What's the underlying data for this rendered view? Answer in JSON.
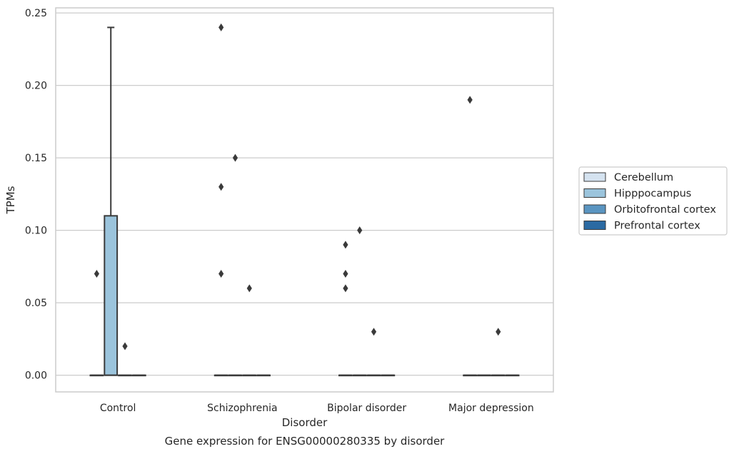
{
  "chart_data": {
    "type": "box",
    "title": "Gene expression for ENSG00000280335 by disorder",
    "xlabel": "Disorder",
    "ylabel": "TPMs",
    "ylim": [
      -0.0115,
      0.2535
    ],
    "yticks": [
      0.0,
      0.05,
      0.1,
      0.15,
      0.2,
      0.25
    ],
    "ytick_labels": [
      "0.00",
      "0.05",
      "0.10",
      "0.15",
      "0.20",
      "0.25"
    ],
    "categories": [
      "Control",
      "Schizophrenia",
      "Bipolar disorder",
      "Major depression"
    ],
    "grid": true,
    "legend_position": "right",
    "series": [
      {
        "name": "Cerebellum",
        "color": "#d5e3f0",
        "boxes": [
          {
            "category": "Control",
            "q1": 0,
            "median": 0,
            "q3": 0,
            "whisker_low": 0,
            "whisker_high": 0,
            "outliers": [
              0.07
            ]
          },
          {
            "category": "Schizophrenia",
            "q1": 0,
            "median": 0,
            "q3": 0,
            "whisker_low": 0,
            "whisker_high": 0,
            "outliers": [
              0.07,
              0.13,
              0.24
            ]
          },
          {
            "category": "Bipolar disorder",
            "q1": 0,
            "median": 0,
            "q3": 0,
            "whisker_low": 0,
            "whisker_high": 0,
            "outliers": [
              0.06,
              0.07,
              0.09
            ]
          },
          {
            "category": "Major depression",
            "q1": 0,
            "median": 0,
            "q3": 0,
            "whisker_low": 0,
            "whisker_high": 0,
            "outliers": [
              0.19
            ]
          }
        ]
      },
      {
        "name": "Hipppocampus",
        "color": "#9bc4dc",
        "boxes": [
          {
            "category": "Control",
            "q1": 0,
            "median": 0,
            "q3": 0.11,
            "whisker_low": 0,
            "whisker_high": 0.24,
            "outliers": []
          },
          {
            "category": "Schizophrenia",
            "q1": 0,
            "median": 0,
            "q3": 0,
            "whisker_low": 0,
            "whisker_high": 0,
            "outliers": [
              0.15
            ]
          },
          {
            "category": "Bipolar disorder",
            "q1": 0,
            "median": 0,
            "q3": 0,
            "whisker_low": 0,
            "whisker_high": 0,
            "outliers": [
              0.1
            ]
          },
          {
            "category": "Major depression",
            "q1": 0,
            "median": 0,
            "q3": 0,
            "whisker_low": 0,
            "whisker_high": 0,
            "outliers": []
          }
        ]
      },
      {
        "name": "Orbitofrontal cortex",
        "color": "#5a95c1",
        "boxes": [
          {
            "category": "Control",
            "q1": 0,
            "median": 0,
            "q3": 0,
            "whisker_low": 0,
            "whisker_high": 0,
            "outliers": [
              0.02
            ]
          },
          {
            "category": "Schizophrenia",
            "q1": 0,
            "median": 0,
            "q3": 0,
            "whisker_low": 0,
            "whisker_high": 0,
            "outliers": [
              0.06
            ]
          },
          {
            "category": "Bipolar disorder",
            "q1": 0,
            "median": 0,
            "q3": 0,
            "whisker_low": 0,
            "whisker_high": 0,
            "outliers": [
              0.03
            ]
          },
          {
            "category": "Major depression",
            "q1": 0,
            "median": 0,
            "q3": 0,
            "whisker_low": 0,
            "whisker_high": 0,
            "outliers": [
              0.03
            ]
          }
        ]
      },
      {
        "name": "Prefrontal cortex",
        "color": "#2b6aa2",
        "boxes": [
          {
            "category": "Control",
            "q1": 0,
            "median": 0,
            "q3": 0,
            "whisker_low": 0,
            "whisker_high": 0,
            "outliers": []
          },
          {
            "category": "Schizophrenia",
            "q1": 0,
            "median": 0,
            "q3": 0,
            "whisker_low": 0,
            "whisker_high": 0,
            "outliers": []
          },
          {
            "category": "Bipolar disorder",
            "q1": 0,
            "median": 0,
            "q3": 0,
            "whisker_low": 0,
            "whisker_high": 0,
            "outliers": []
          },
          {
            "category": "Major depression",
            "q1": 0,
            "median": 0,
            "q3": 0,
            "whisker_low": 0,
            "whisker_high": 0,
            "outliers": []
          }
        ]
      }
    ]
  }
}
